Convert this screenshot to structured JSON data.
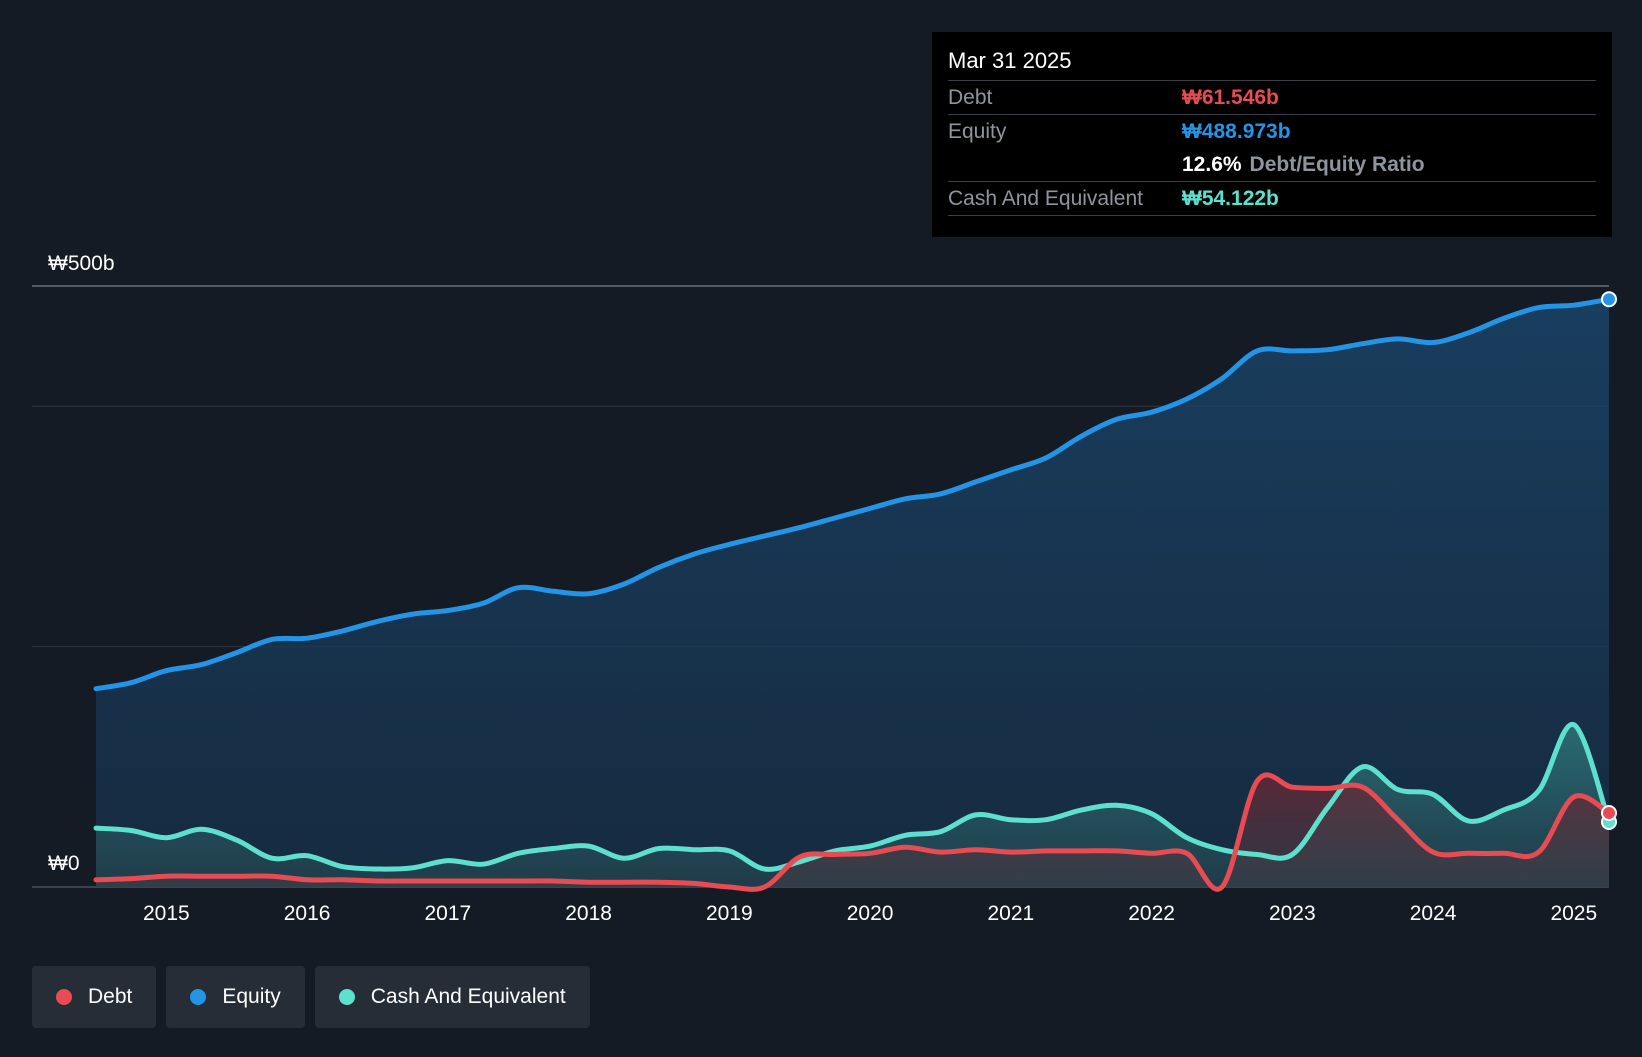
{
  "chart_data": {
    "type": "area",
    "title": "",
    "xlabel": "",
    "ylabel": "",
    "currency_symbol": "₩",
    "ylim": [
      0,
      500
    ],
    "y_unit": "b",
    "y_tick_labels": {
      "top": "₩500b",
      "bottom": "₩0"
    },
    "x_ticks": [
      2015,
      2016,
      2017,
      2018,
      2019,
      2020,
      2021,
      2022,
      2023,
      2024,
      2025
    ],
    "x_range": [
      2014.5,
      2025.25
    ],
    "gridlines": [
      0,
      200,
      400,
      500
    ],
    "series": [
      {
        "name": "Equity",
        "color": "#2394e6",
        "values": [
          [
            2014.5,
            165
          ],
          [
            2014.75,
            170
          ],
          [
            2015.0,
            180
          ],
          [
            2015.25,
            185
          ],
          [
            2015.5,
            195
          ],
          [
            2015.75,
            206
          ],
          [
            2016.0,
            207
          ],
          [
            2016.25,
            213
          ],
          [
            2016.5,
            221
          ],
          [
            2016.75,
            227
          ],
          [
            2017.0,
            230
          ],
          [
            2017.25,
            236
          ],
          [
            2017.5,
            249
          ],
          [
            2017.75,
            246
          ],
          [
            2018.0,
            244
          ],
          [
            2018.25,
            252
          ],
          [
            2018.5,
            266
          ],
          [
            2018.75,
            277
          ],
          [
            2019.0,
            285
          ],
          [
            2019.25,
            292
          ],
          [
            2019.5,
            299
          ],
          [
            2019.75,
            307
          ],
          [
            2020.0,
            315
          ],
          [
            2020.25,
            323
          ],
          [
            2020.5,
            327
          ],
          [
            2020.75,
            337
          ],
          [
            2021.0,
            347
          ],
          [
            2021.25,
            357
          ],
          [
            2021.5,
            375
          ],
          [
            2021.75,
            389
          ],
          [
            2022.0,
            395
          ],
          [
            2022.25,
            406
          ],
          [
            2022.5,
            423
          ],
          [
            2022.75,
            446
          ],
          [
            2023.0,
            446
          ],
          [
            2023.25,
            447
          ],
          [
            2023.5,
            452
          ],
          [
            2023.75,
            456
          ],
          [
            2024.0,
            453
          ],
          [
            2024.25,
            461
          ],
          [
            2024.5,
            473
          ],
          [
            2024.75,
            482
          ],
          [
            2025.0,
            484
          ],
          [
            2025.25,
            488.973
          ]
        ]
      },
      {
        "name": "Cash And Equivalent",
        "color": "#5ee0cf",
        "values": [
          [
            2014.5,
            49
          ],
          [
            2014.75,
            47
          ],
          [
            2015.0,
            41
          ],
          [
            2015.25,
            48
          ],
          [
            2015.5,
            39
          ],
          [
            2015.75,
            24
          ],
          [
            2016.0,
            26
          ],
          [
            2016.25,
            17
          ],
          [
            2016.5,
            15
          ],
          [
            2016.75,
            16
          ],
          [
            2017.0,
            22
          ],
          [
            2017.25,
            19
          ],
          [
            2017.5,
            28
          ],
          [
            2017.75,
            32
          ],
          [
            2018.0,
            34
          ],
          [
            2018.25,
            24
          ],
          [
            2018.5,
            32
          ],
          [
            2018.75,
            31
          ],
          [
            2019.0,
            30
          ],
          [
            2019.25,
            15
          ],
          [
            2019.5,
            21
          ],
          [
            2019.75,
            30
          ],
          [
            2020.0,
            34
          ],
          [
            2020.25,
            43
          ],
          [
            2020.5,
            46
          ],
          [
            2020.75,
            60
          ],
          [
            2021.0,
            56
          ],
          [
            2021.25,
            56
          ],
          [
            2021.5,
            64
          ],
          [
            2021.75,
            68
          ],
          [
            2022.0,
            61
          ],
          [
            2022.25,
            41
          ],
          [
            2022.5,
            31
          ],
          [
            2022.75,
            27
          ],
          [
            2023.0,
            27
          ],
          [
            2023.25,
            66
          ],
          [
            2023.5,
            100
          ],
          [
            2023.75,
            81
          ],
          [
            2024.0,
            77
          ],
          [
            2024.25,
            55
          ],
          [
            2024.5,
            64
          ],
          [
            2024.75,
            80
          ],
          [
            2025.0,
            135
          ],
          [
            2025.25,
            54.122
          ]
        ]
      },
      {
        "name": "Debt",
        "color": "#e84c52",
        "values": [
          [
            2014.5,
            6
          ],
          [
            2014.75,
            7
          ],
          [
            2015.0,
            9
          ],
          [
            2015.25,
            9
          ],
          [
            2015.5,
            9
          ],
          [
            2015.75,
            9
          ],
          [
            2016.0,
            6
          ],
          [
            2016.25,
            6
          ],
          [
            2016.5,
            5
          ],
          [
            2016.75,
            5
          ],
          [
            2017.0,
            5
          ],
          [
            2017.25,
            5
          ],
          [
            2017.5,
            5
          ],
          [
            2017.75,
            5
          ],
          [
            2018.0,
            4
          ],
          [
            2018.25,
            4
          ],
          [
            2018.5,
            4
          ],
          [
            2018.75,
            3
          ],
          [
            2019.0,
            0
          ],
          [
            2019.25,
            0
          ],
          [
            2019.5,
            25
          ],
          [
            2019.75,
            27
          ],
          [
            2020.0,
            28
          ],
          [
            2020.25,
            33
          ],
          [
            2020.5,
            29
          ],
          [
            2020.75,
            31
          ],
          [
            2021.0,
            29
          ],
          [
            2021.25,
            30
          ],
          [
            2021.5,
            30
          ],
          [
            2021.75,
            30
          ],
          [
            2022.0,
            28
          ],
          [
            2022.25,
            28
          ],
          [
            2022.5,
            0
          ],
          [
            2022.75,
            88
          ],
          [
            2023.0,
            83
          ],
          [
            2023.25,
            82
          ],
          [
            2023.5,
            83
          ],
          [
            2023.75,
            56
          ],
          [
            2024.0,
            29
          ],
          [
            2024.25,
            28
          ],
          [
            2024.5,
            28
          ],
          [
            2024.75,
            29
          ],
          [
            2025.0,
            75
          ],
          [
            2025.25,
            61.546
          ]
        ]
      }
    ],
    "tooltip": {
      "date": "Mar 31 2025",
      "debt_label": "Debt",
      "debt_value": "₩61.546b",
      "equity_label": "Equity",
      "equity_value": "₩488.973b",
      "ratio_value": "12.6%",
      "ratio_label": "Debt/Equity Ratio",
      "cash_label": "Cash And Equivalent",
      "cash_value": "₩54.122b"
    },
    "legend": [
      {
        "name": "Debt",
        "color": "#e84c52"
      },
      {
        "name": "Equity",
        "color": "#2394e6"
      },
      {
        "name": "Cash And Equivalent",
        "color": "#5ee0cf"
      }
    ]
  }
}
